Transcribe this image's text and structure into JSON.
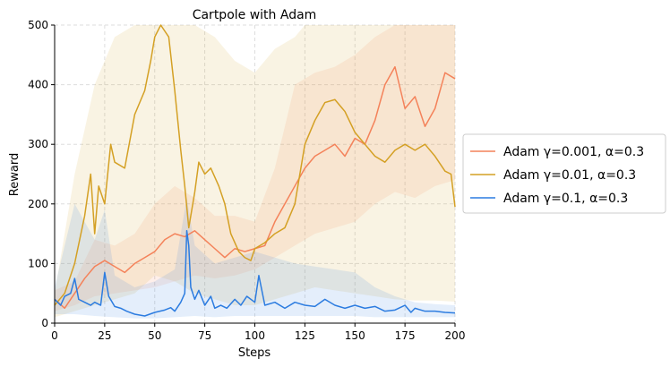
{
  "chart_data": {
    "type": "line",
    "title": "Cartpole with Adam",
    "xlabel": "Steps",
    "ylabel": "Reward",
    "xlim": [
      0,
      200
    ],
    "ylim": [
      0,
      500
    ],
    "xticks": [
      0,
      25,
      50,
      75,
      100,
      125,
      150,
      175,
      200
    ],
    "yticks": [
      0,
      100,
      200,
      300,
      400,
      500
    ],
    "grid": true,
    "legend_position": "center-right-outside",
    "series": [
      {
        "name": "Adam γ=0.001, α=0.3",
        "color": "#f4825a",
        "points": [
          [
            0,
            40
          ],
          [
            5,
            25
          ],
          [
            10,
            50
          ],
          [
            15,
            75
          ],
          [
            20,
            95
          ],
          [
            25,
            105
          ],
          [
            30,
            95
          ],
          [
            35,
            85
          ],
          [
            40,
            100
          ],
          [
            45,
            110
          ],
          [
            50,
            120
          ],
          [
            55,
            140
          ],
          [
            60,
            150
          ],
          [
            65,
            145
          ],
          [
            70,
            155
          ],
          [
            75,
            140
          ],
          [
            80,
            125
          ],
          [
            85,
            110
          ],
          [
            90,
            125
          ],
          [
            95,
            120
          ],
          [
            100,
            125
          ],
          [
            105,
            130
          ],
          [
            110,
            170
          ],
          [
            115,
            200
          ],
          [
            120,
            230
          ],
          [
            125,
            260
          ],
          [
            130,
            280
          ],
          [
            135,
            290
          ],
          [
            140,
            300
          ],
          [
            145,
            280
          ],
          [
            150,
            310
          ],
          [
            155,
            300
          ],
          [
            160,
            340
          ],
          [
            165,
            400
          ],
          [
            170,
            430
          ],
          [
            175,
            360
          ],
          [
            180,
            380
          ],
          [
            185,
            330
          ],
          [
            190,
            360
          ],
          [
            195,
            420
          ],
          [
            200,
            410
          ]
        ],
        "band_upper": [
          [
            0,
            55
          ],
          [
            10,
            70
          ],
          [
            20,
            140
          ],
          [
            30,
            130
          ],
          [
            40,
            150
          ],
          [
            50,
            200
          ],
          [
            60,
            230
          ],
          [
            70,
            210
          ],
          [
            80,
            180
          ],
          [
            90,
            180
          ],
          [
            100,
            170
          ],
          [
            110,
            260
          ],
          [
            120,
            400
          ],
          [
            130,
            420
          ],
          [
            140,
            430
          ],
          [
            150,
            450
          ],
          [
            160,
            480
          ],
          [
            170,
            500
          ],
          [
            180,
            500
          ],
          [
            190,
            500
          ],
          [
            200,
            500
          ]
        ],
        "band_lower": [
          [
            0,
            20
          ],
          [
            10,
            30
          ],
          [
            20,
            45
          ],
          [
            30,
            50
          ],
          [
            40,
            55
          ],
          [
            50,
            60
          ],
          [
            60,
            70
          ],
          [
            70,
            80
          ],
          [
            80,
            75
          ],
          [
            90,
            80
          ],
          [
            100,
            90
          ],
          [
            110,
            110
          ],
          [
            120,
            130
          ],
          [
            130,
            150
          ],
          [
            140,
            160
          ],
          [
            150,
            170
          ],
          [
            160,
            200
          ],
          [
            170,
            220
          ],
          [
            180,
            210
          ],
          [
            190,
            230
          ],
          [
            200,
            240
          ]
        ]
      },
      {
        "name": "Adam γ=0.01, α=0.3",
        "color": "#d4a024",
        "points": [
          [
            0,
            30
          ],
          [
            5,
            50
          ],
          [
            10,
            100
          ],
          [
            15,
            180
          ],
          [
            18,
            250
          ],
          [
            20,
            150
          ],
          [
            22,
            230
          ],
          [
            25,
            200
          ],
          [
            28,
            300
          ],
          [
            30,
            270
          ],
          [
            35,
            260
          ],
          [
            40,
            350
          ],
          [
            45,
            390
          ],
          [
            48,
            440
          ],
          [
            50,
            480
          ],
          [
            53,
            500
          ],
          [
            57,
            480
          ],
          [
            60,
            390
          ],
          [
            63,
            290
          ],
          [
            65,
            230
          ],
          [
            67,
            160
          ],
          [
            70,
            220
          ],
          [
            72,
            270
          ],
          [
            75,
            250
          ],
          [
            78,
            260
          ],
          [
            82,
            230
          ],
          [
            85,
            200
          ],
          [
            88,
            150
          ],
          [
            92,
            120
          ],
          [
            95,
            110
          ],
          [
            98,
            105
          ],
          [
            100,
            125
          ],
          [
            105,
            135
          ],
          [
            110,
            150
          ],
          [
            115,
            160
          ],
          [
            120,
            200
          ],
          [
            125,
            300
          ],
          [
            130,
            340
          ],
          [
            135,
            370
          ],
          [
            140,
            375
          ],
          [
            145,
            355
          ],
          [
            150,
            320
          ],
          [
            155,
            300
          ],
          [
            160,
            280
          ],
          [
            165,
            270
          ],
          [
            170,
            290
          ],
          [
            175,
            300
          ],
          [
            180,
            290
          ],
          [
            185,
            300
          ],
          [
            190,
            280
          ],
          [
            195,
            255
          ],
          [
            198,
            250
          ],
          [
            200,
            195
          ]
        ],
        "band_upper": [
          [
            0,
            50
          ],
          [
            10,
            250
          ],
          [
            20,
            400
          ],
          [
            30,
            480
          ],
          [
            40,
            500
          ],
          [
            50,
            500
          ],
          [
            60,
            500
          ],
          [
            70,
            500
          ],
          [
            80,
            480
          ],
          [
            90,
            440
          ],
          [
            100,
            420
          ],
          [
            110,
            460
          ],
          [
            120,
            480
          ],
          [
            125,
            500
          ],
          [
            130,
            500
          ],
          [
            140,
            500
          ],
          [
            150,
            500
          ],
          [
            160,
            500
          ],
          [
            170,
            500
          ],
          [
            180,
            500
          ],
          [
            190,
            500
          ],
          [
            200,
            500
          ]
        ],
        "band_lower": [
          [
            0,
            10
          ],
          [
            10,
            20
          ],
          [
            20,
            30
          ],
          [
            30,
            40
          ],
          [
            40,
            50
          ],
          [
            50,
            80
          ],
          [
            60,
            70
          ],
          [
            70,
            50
          ],
          [
            80,
            40
          ],
          [
            90,
            30
          ],
          [
            100,
            30
          ],
          [
            110,
            40
          ],
          [
            120,
            50
          ],
          [
            130,
            60
          ],
          [
            140,
            55
          ],
          [
            150,
            50
          ],
          [
            160,
            45
          ],
          [
            170,
            40
          ],
          [
            180,
            38
          ],
          [
            190,
            38
          ],
          [
            200,
            36
          ]
        ]
      },
      {
        "name": "Adam γ=0.1, α=0.3",
        "color": "#2c7ce0",
        "points": [
          [
            0,
            40
          ],
          [
            3,
            30
          ],
          [
            5,
            45
          ],
          [
            8,
            50
          ],
          [
            10,
            75
          ],
          [
            12,
            40
          ],
          [
            15,
            35
          ],
          [
            18,
            30
          ],
          [
            20,
            35
          ],
          [
            23,
            30
          ],
          [
            25,
            85
          ],
          [
            27,
            45
          ],
          [
            30,
            28
          ],
          [
            33,
            25
          ],
          [
            36,
            20
          ],
          [
            40,
            15
          ],
          [
            45,
            12
          ],
          [
            50,
            18
          ],
          [
            55,
            22
          ],
          [
            58,
            26
          ],
          [
            60,
            20
          ],
          [
            63,
            35
          ],
          [
            65,
            50
          ],
          [
            66,
            155
          ],
          [
            67,
            130
          ],
          [
            68,
            60
          ],
          [
            70,
            40
          ],
          [
            72,
            55
          ],
          [
            75,
            30
          ],
          [
            78,
            45
          ],
          [
            80,
            25
          ],
          [
            83,
            30
          ],
          [
            86,
            25
          ],
          [
            90,
            40
          ],
          [
            93,
            30
          ],
          [
            96,
            45
          ],
          [
            100,
            35
          ],
          [
            102,
            80
          ],
          [
            105,
            30
          ],
          [
            110,
            35
          ],
          [
            115,
            25
          ],
          [
            120,
            35
          ],
          [
            125,
            30
          ],
          [
            130,
            28
          ],
          [
            135,
            40
          ],
          [
            140,
            30
          ],
          [
            145,
            25
          ],
          [
            150,
            30
          ],
          [
            155,
            25
          ],
          [
            160,
            28
          ],
          [
            165,
            20
          ],
          [
            170,
            22
          ],
          [
            175,
            30
          ],
          [
            178,
            18
          ],
          [
            180,
            25
          ],
          [
            185,
            20
          ],
          [
            190,
            20
          ],
          [
            195,
            18
          ],
          [
            200,
            17
          ]
        ],
        "band_upper": [
          [
            0,
            60
          ],
          [
            10,
            200
          ],
          [
            20,
            140
          ],
          [
            25,
            190
          ],
          [
            30,
            80
          ],
          [
            40,
            60
          ],
          [
            50,
            70
          ],
          [
            60,
            90
          ],
          [
            66,
            210
          ],
          [
            70,
            130
          ],
          [
            80,
            100
          ],
          [
            90,
            110
          ],
          [
            100,
            120
          ],
          [
            110,
            110
          ],
          [
            120,
            100
          ],
          [
            130,
            95
          ],
          [
            140,
            90
          ],
          [
            150,
            85
          ],
          [
            160,
            60
          ],
          [
            170,
            45
          ],
          [
            180,
            35
          ],
          [
            190,
            32
          ],
          [
            200,
            30
          ]
        ],
        "band_lower": [
          [
            0,
            15
          ],
          [
            10,
            15
          ],
          [
            20,
            12
          ],
          [
            30,
            10
          ],
          [
            40,
            8
          ],
          [
            50,
            8
          ],
          [
            60,
            10
          ],
          [
            70,
            12
          ],
          [
            80,
            10
          ],
          [
            90,
            12
          ],
          [
            100,
            12
          ],
          [
            110,
            12
          ],
          [
            120,
            12
          ],
          [
            130,
            12
          ],
          [
            140,
            12
          ],
          [
            150,
            12
          ],
          [
            160,
            10
          ],
          [
            170,
            10
          ],
          [
            180,
            10
          ],
          [
            190,
            10
          ],
          [
            200,
            10
          ]
        ]
      }
    ]
  }
}
